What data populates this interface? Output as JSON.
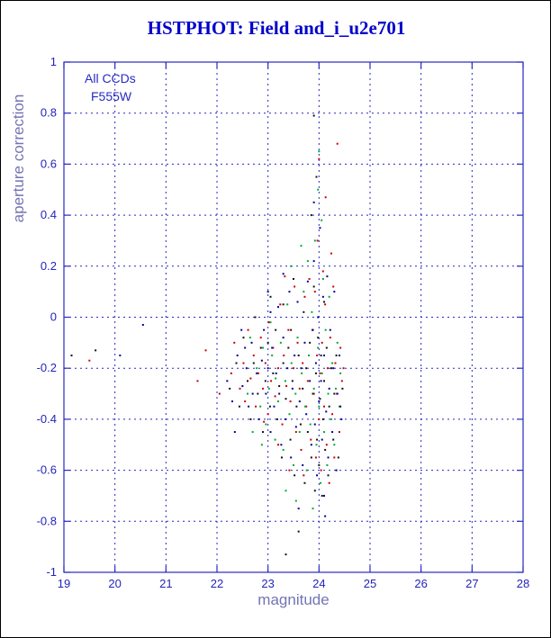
{
  "page": {
    "title": "HSTPHOT: Field and_i_u2e701"
  },
  "annotations": {
    "line1": "All CCDs",
    "line2": "F555W"
  },
  "colors": {
    "frame": "#2929c0",
    "grid": "#2929c0",
    "tick_label": "#2424bb",
    "title": "#0000cc",
    "axis_label": "#7474b4"
  },
  "chart_data": {
    "type": "scatter",
    "title": "HSTPHOT: Field and_i_u2e701",
    "xlabel": "magnitude",
    "ylabel": "aperture correction",
    "xlim": [
      19,
      28
    ],
    "ylim": [
      -1,
      1
    ],
    "xticks": [
      19,
      20,
      21,
      22,
      23,
      24,
      25,
      26,
      27,
      28
    ],
    "yticks": [
      -1,
      -0.8,
      -0.6,
      -0.4,
      -0.2,
      0,
      0.2,
      0.4,
      0.6,
      0.8,
      1
    ],
    "grid": true,
    "grid_style": "dashed",
    "legend": "none",
    "series": [
      {
        "name": "red",
        "color": "#cc0000",
        "points": [
          [
            19.5,
            -0.17
          ],
          [
            21.62,
            -0.25
          ],
          [
            21.78,
            -0.13
          ],
          [
            22.05,
            -0.3
          ],
          [
            22.28,
            -0.22
          ],
          [
            22.34,
            -0.1
          ],
          [
            22.45,
            -0.28
          ],
          [
            22.52,
            -0.18
          ],
          [
            22.55,
            -0.33
          ],
          [
            22.61,
            -0.05
          ],
          [
            22.66,
            -0.24
          ],
          [
            22.72,
            -0.15
          ],
          [
            22.76,
            -0.35
          ],
          [
            22.81,
            -0.22
          ],
          [
            22.86,
            -0.08
          ],
          [
            22.9,
            -0.28
          ],
          [
            22.95,
            -0.18
          ],
          [
            23.0,
            -0.38
          ],
          [
            23.02,
            -0.02
          ],
          [
            23.06,
            -0.25
          ],
          [
            23.1,
            -0.12
          ],
          [
            23.14,
            -0.31
          ],
          [
            23.2,
            -0.2
          ],
          [
            23.24,
            0.05
          ],
          [
            23.28,
            -0.42
          ],
          [
            23.31,
            -0.15
          ],
          [
            23.36,
            -0.27
          ],
          [
            23.4,
            -0.05
          ],
          [
            23.44,
            -0.33
          ],
          [
            23.5,
            -0.2
          ],
          [
            23.52,
            0.12
          ],
          [
            23.55,
            -0.45
          ],
          [
            23.58,
            -0.1
          ],
          [
            23.62,
            -0.28
          ],
          [
            23.65,
            -0.52
          ],
          [
            23.68,
            -0.18
          ],
          [
            23.72,
            0.08
          ],
          [
            23.75,
            -0.35
          ],
          [
            23.78,
            -0.25
          ],
          [
            23.81,
            0.15
          ],
          [
            23.84,
            -0.48
          ],
          [
            23.87,
            -0.05
          ],
          [
            23.9,
            -0.3
          ],
          [
            23.92,
            0.1
          ],
          [
            23.94,
            -0.55
          ],
          [
            23.96,
            -0.15
          ],
          [
            23.97,
            0.3
          ],
          [
            24.0,
            -0.4
          ],
          [
            24.0,
            0.62
          ],
          [
            24.02,
            -0.22
          ],
          [
            24.04,
            -0.6
          ],
          [
            24.06,
            -0.1
          ],
          [
            24.08,
            0.18
          ],
          [
            24.1,
            -0.35
          ],
          [
            24.12,
            0.05
          ],
          [
            24.13,
            0.47
          ],
          [
            24.15,
            -0.5
          ],
          [
            24.17,
            -0.2
          ],
          [
            24.2,
            -0.65
          ],
          [
            24.22,
            -0.08
          ],
          [
            24.24,
            0.25
          ],
          [
            24.26,
            -0.38
          ],
          [
            24.28,
            0.12
          ],
          [
            24.3,
            -0.55
          ],
          [
            24.32,
            -0.18
          ],
          [
            24.35,
            -0.3
          ],
          [
            24.36,
            0.68
          ],
          [
            24.4,
            -0.45
          ],
          [
            24.42,
            -0.12
          ],
          [
            24.45,
            -0.25
          ],
          [
            23.42,
            -0.6
          ],
          [
            23.2,
            -0.5
          ],
          [
            22.92,
            -0.41
          ],
          [
            23.7,
            -0.62
          ],
          [
            24.48,
            -0.2
          ],
          [
            23.33,
            0.16
          ]
        ]
      },
      {
        "name": "navy",
        "color": "#000099",
        "points": [
          [
            20.1,
            -0.15
          ],
          [
            20.55,
            -0.03
          ],
          [
            22.2,
            -0.25
          ],
          [
            22.3,
            -0.33
          ],
          [
            22.4,
            -0.15
          ],
          [
            22.48,
            -0.05
          ],
          [
            22.5,
            -0.27
          ],
          [
            22.58,
            -0.2
          ],
          [
            22.62,
            -0.35
          ],
          [
            22.68,
            -0.1
          ],
          [
            22.7,
            -0.3
          ],
          [
            22.75,
            0.0
          ],
          [
            22.78,
            -0.22
          ],
          [
            22.82,
            -0.4
          ],
          [
            22.88,
            -0.17
          ],
          [
            22.92,
            -0.05
          ],
          [
            22.96,
            -0.3
          ],
          [
            23.0,
            -0.2
          ],
          [
            23.0,
            0.1
          ],
          [
            23.05,
            -0.45
          ],
          [
            23.08,
            -0.12
          ],
          [
            23.12,
            -0.35
          ],
          [
            23.16,
            -0.22
          ],
          [
            23.2,
            0.04
          ],
          [
            23.22,
            -0.3
          ],
          [
            23.26,
            -0.5
          ],
          [
            23.3,
            -0.08
          ],
          [
            23.34,
            -0.4
          ],
          [
            23.38,
            -0.2
          ],
          [
            23.42,
            0.1
          ],
          [
            23.45,
            -0.55
          ],
          [
            23.48,
            -0.28
          ],
          [
            23.52,
            -0.15
          ],
          [
            23.55,
            -0.43
          ],
          [
            23.58,
            0.06
          ],
          [
            23.62,
            -0.33
          ],
          [
            23.65,
            -0.2
          ],
          [
            23.68,
            -0.58
          ],
          [
            23.72,
            -0.1
          ],
          [
            23.75,
            -0.38
          ],
          [
            23.78,
            0.14
          ],
          [
            23.82,
            -0.25
          ],
          [
            23.85,
            -0.5
          ],
          [
            23.88,
            -0.05
          ],
          [
            23.9,
            0.22
          ],
          [
            23.92,
            -0.42
          ],
          [
            23.94,
            -0.18
          ],
          [
            23.96,
            -0.62
          ],
          [
            23.98,
            0.0
          ],
          [
            24.0,
            -0.33
          ],
          [
            24.02,
            0.35
          ],
          [
            24.04,
            -0.25
          ],
          [
            24.06,
            -0.48
          ],
          [
            24.08,
            0.08
          ],
          [
            24.1,
            -0.7
          ],
          [
            24.1,
            -0.15
          ],
          [
            24.14,
            -0.37
          ],
          [
            24.16,
            0.16
          ],
          [
            24.18,
            -0.55
          ],
          [
            24.2,
            -0.28
          ],
          [
            24.22,
            -0.05
          ],
          [
            24.26,
            -0.45
          ],
          [
            24.28,
            -0.2
          ],
          [
            24.3,
            0.1
          ],
          [
            24.34,
            -0.6
          ],
          [
            24.36,
            -0.3
          ],
          [
            24.4,
            -0.15
          ],
          [
            24.44,
            -0.4
          ],
          [
            22.35,
            -0.45
          ],
          [
            23.3,
            0.17
          ],
          [
            23.6,
            -0.75
          ],
          [
            24.12,
            -0.78
          ],
          [
            23.9,
            0.45
          ],
          [
            23.05,
            0.02
          ],
          [
            22.55,
            -0.12
          ]
        ]
      },
      {
        "name": "green",
        "color": "#00aa33",
        "points": [
          [
            22.6,
            -0.3
          ],
          [
            22.7,
            -0.45
          ],
          [
            22.78,
            -0.2
          ],
          [
            22.85,
            -0.35
          ],
          [
            22.9,
            -0.12
          ],
          [
            22.96,
            -0.42
          ],
          [
            23.02,
            -0.28
          ],
          [
            23.08,
            -0.15
          ],
          [
            23.14,
            -0.48
          ],
          [
            23.2,
            -0.33
          ],
          [
            23.25,
            -0.1
          ],
          [
            23.3,
            -0.52
          ],
          [
            23.34,
            -0.25
          ],
          [
            23.38,
            0.05
          ],
          [
            23.42,
            -0.38
          ],
          [
            23.46,
            -0.18
          ],
          [
            23.5,
            -0.58
          ],
          [
            23.54,
            -0.3
          ],
          [
            23.58,
            -0.08
          ],
          [
            23.62,
            -0.45
          ],
          [
            23.66,
            -0.22
          ],
          [
            23.7,
            0.1
          ],
          [
            23.73,
            -0.35
          ],
          [
            23.76,
            -0.6
          ],
          [
            23.8,
            -0.15
          ],
          [
            23.83,
            -0.42
          ],
          [
            23.86,
            0.02
          ],
          [
            23.9,
            -0.28
          ],
          [
            23.92,
            0.3
          ],
          [
            23.95,
            -0.5
          ],
          [
            23.98,
            -0.12
          ],
          [
            24.0,
            0.65
          ],
          [
            24.0,
            -0.35
          ],
          [
            24.03,
            -0.65
          ],
          [
            24.06,
            -0.22
          ],
          [
            24.08,
            0.15
          ],
          [
            24.1,
            -0.45
          ],
          [
            24.13,
            -0.05
          ],
          [
            24.16,
            -0.58
          ],
          [
            24.18,
            -0.3
          ],
          [
            24.2,
            0.08
          ],
          [
            24.24,
            -0.4
          ],
          [
            24.26,
            -0.18
          ],
          [
            24.3,
            -0.5
          ],
          [
            24.33,
            -0.28
          ],
          [
            24.36,
            -0.1
          ],
          [
            24.4,
            -0.35
          ],
          [
            23.35,
            -0.68
          ],
          [
            23.55,
            -0.72
          ],
          [
            23.65,
            0.28
          ],
          [
            23.45,
            0.2
          ],
          [
            23.05,
            -0.02
          ],
          [
            22.65,
            -0.08
          ],
          [
            24.05,
            0.38
          ],
          [
            23.88,
            -0.75
          ],
          [
            23.15,
            -0.24
          ],
          [
            24.42,
            -0.22
          ],
          [
            23.98,
            0.5
          ],
          [
            23.78,
            0.22
          ],
          [
            22.88,
            -0.5
          ]
        ]
      },
      {
        "name": "black",
        "color": "#111111",
        "points": [
          [
            19.15,
            -0.15
          ],
          [
            19.62,
            -0.13
          ],
          [
            22.25,
            -0.28
          ],
          [
            22.38,
            -0.18
          ],
          [
            22.44,
            -0.35
          ],
          [
            22.52,
            -0.08
          ],
          [
            22.6,
            -0.25
          ],
          [
            22.66,
            -0.4
          ],
          [
            22.72,
            -0.18
          ],
          [
            22.8,
            -0.3
          ],
          [
            22.86,
            -0.12
          ],
          [
            22.9,
            -0.45
          ],
          [
            22.95,
            -0.25
          ],
          [
            23.0,
            -0.1
          ],
          [
            23.04,
            -0.35
          ],
          [
            23.1,
            -0.22
          ],
          [
            23.15,
            -0.05
          ],
          [
            23.18,
            -0.4
          ],
          [
            23.22,
            -0.27
          ],
          [
            23.27,
            -0.55
          ],
          [
            23.3,
            -0.18
          ],
          [
            23.35,
            -0.93
          ],
          [
            23.35,
            -0.32
          ],
          [
            23.4,
            -0.12
          ],
          [
            23.44,
            -0.48
          ],
          [
            23.48,
            -0.25
          ],
          [
            23.52,
            -0.62
          ],
          [
            23.56,
            -0.35
          ],
          [
            23.6,
            -0.84
          ],
          [
            23.6,
            -0.15
          ],
          [
            23.64,
            -0.42
          ],
          [
            23.68,
            -0.28
          ],
          [
            23.72,
            -0.65
          ],
          [
            23.75,
            -0.2
          ],
          [
            23.78,
            -0.45
          ],
          [
            23.82,
            -0.1
          ],
          [
            23.85,
            -0.55
          ],
          [
            23.88,
            -0.3
          ],
          [
            23.9,
            0.79
          ],
          [
            23.92,
            -0.68
          ],
          [
            23.94,
            -0.22
          ],
          [
            23.96,
            -0.48
          ],
          [
            23.98,
            -0.08
          ],
          [
            24.0,
            -0.58
          ],
          [
            24.02,
            -0.32
          ],
          [
            24.04,
            -0.15
          ],
          [
            24.06,
            -0.7
          ],
          [
            24.08,
            -0.4
          ],
          [
            24.1,
            -0.25
          ],
          [
            24.12,
            -0.52
          ],
          [
            24.15,
            -0.12
          ],
          [
            24.18,
            -0.62
          ],
          [
            24.2,
            -0.35
          ],
          [
            24.24,
            -0.2
          ],
          [
            24.28,
            -0.48
          ],
          [
            24.3,
            -0.3
          ],
          [
            24.34,
            -0.15
          ],
          [
            24.38,
            -0.55
          ],
          [
            24.42,
            -0.35
          ],
          [
            23.3,
            0.05
          ],
          [
            23.5,
            0.15
          ],
          [
            23.7,
            0.02
          ],
          [
            23.9,
            0.12
          ],
          [
            24.1,
            0.06
          ],
          [
            23.85,
            0.4
          ],
          [
            23.95,
            0.55
          ],
          [
            23.45,
            -0.05
          ],
          [
            23.05,
            0.08
          ],
          [
            22.75,
            0.0
          ],
          [
            24.46,
            -0.28
          ]
        ]
      }
    ]
  }
}
